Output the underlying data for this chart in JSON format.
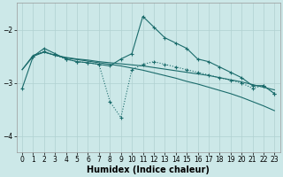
{
  "background_color": "#cce8e8",
  "grid_color": "#b0d0d0",
  "line_color": "#1a6b6b",
  "xlabel": "Humidex (Indice chaleur)",
  "xlabel_fontsize": 7,
  "ylim": [
    -4.3,
    -1.5
  ],
  "xlim": [
    -0.5,
    23.5
  ],
  "yticks": [
    -4,
    -3,
    -2
  ],
  "xticks": [
    0,
    1,
    2,
    3,
    4,
    5,
    6,
    7,
    8,
    9,
    10,
    11,
    12,
    13,
    14,
    15,
    16,
    17,
    18,
    19,
    20,
    21,
    22,
    23
  ],
  "line1_x": [
    0,
    1,
    2,
    3,
    4,
    5,
    6,
    7,
    8,
    9,
    10,
    11,
    12,
    13,
    14,
    15,
    16,
    17,
    18,
    19,
    20,
    21,
    22,
    23
  ],
  "line1_y": [
    -3.1,
    -2.5,
    -2.35,
    -2.45,
    -2.55,
    -2.6,
    -2.62,
    -2.65,
    -2.68,
    -2.55,
    -2.45,
    -1.75,
    -1.95,
    -2.15,
    -2.25,
    -2.35,
    -2.55,
    -2.6,
    -2.7,
    -2.8,
    -2.9,
    -3.05,
    -3.05,
    -3.2
  ],
  "line2_x": [
    1,
    2,
    3,
    4,
    5,
    6,
    7,
    8,
    9,
    10,
    11,
    12,
    13,
    14,
    15,
    16,
    17,
    18,
    19,
    20,
    21,
    22,
    23
  ],
  "line2_y": [
    -2.5,
    -2.4,
    -2.48,
    -2.55,
    -2.6,
    -2.62,
    -2.65,
    -3.35,
    -3.65,
    -2.75,
    -2.65,
    -2.6,
    -2.65,
    -2.7,
    -2.75,
    -2.8,
    -2.85,
    -2.9,
    -2.95,
    -3.0,
    -3.1,
    -3.05,
    -3.2
  ],
  "line3_x": [
    0,
    1,
    2,
    3,
    4,
    5,
    6,
    7,
    8,
    9,
    10,
    11,
    12,
    13,
    14,
    15,
    16,
    17,
    18,
    19,
    20,
    21,
    22,
    23
  ],
  "line3_y": [
    -2.75,
    -2.48,
    -2.42,
    -2.48,
    -2.52,
    -2.55,
    -2.57,
    -2.6,
    -2.62,
    -2.64,
    -2.66,
    -2.68,
    -2.71,
    -2.74,
    -2.77,
    -2.8,
    -2.83,
    -2.86,
    -2.9,
    -2.94,
    -2.98,
    -3.03,
    -3.08,
    -3.13
  ],
  "line4_x": [
    0,
    1,
    2,
    3,
    4,
    5,
    6,
    7,
    8,
    9,
    10,
    11,
    12,
    13,
    14,
    15,
    16,
    17,
    18,
    19,
    20,
    21,
    22,
    23
  ],
  "line4_y": [
    -2.75,
    -2.5,
    -2.42,
    -2.48,
    -2.53,
    -2.56,
    -2.59,
    -2.62,
    -2.65,
    -2.68,
    -2.72,
    -2.76,
    -2.81,
    -2.86,
    -2.91,
    -2.97,
    -3.02,
    -3.08,
    -3.14,
    -3.2,
    -3.27,
    -3.35,
    -3.43,
    -3.52
  ]
}
